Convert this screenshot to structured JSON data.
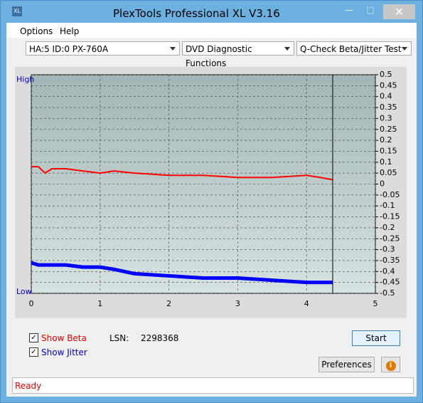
{
  "window": {
    "title": "PlexTools Professional XL V3.16"
  },
  "menu": [
    "Options",
    "Help"
  ],
  "toolbar": {
    "drive": "HA:5 ID:0  PX-760A",
    "function": "DVD Diagnostic Functions",
    "test": "Q-Check Beta/Jitter Test"
  },
  "chart_data": {
    "type": "line",
    "high_label": "High",
    "low_label": "Low",
    "x": [
      0,
      0.1,
      0.2,
      0.3,
      0.5,
      0.75,
      1.0,
      1.2,
      1.5,
      2,
      2.5,
      3,
      3.5,
      4,
      4.2,
      4.38
    ],
    "series": [
      {
        "name": "Beta",
        "color": "#ff0000",
        "values": [
          0.08,
          0.08,
          0.05,
          0.07,
          0.07,
          0.06,
          0.05,
          0.06,
          0.05,
          0.04,
          0.04,
          0.03,
          0.03,
          0.04,
          0.03,
          0.02
        ]
      },
      {
        "name": "Jitter",
        "color": "#0000ff",
        "values": [
          -0.36,
          -0.37,
          -0.37,
          -0.37,
          -0.37,
          -0.38,
          -0.38,
          -0.39,
          -0.41,
          -0.42,
          -0.43,
          -0.43,
          -0.44,
          -0.45,
          -0.45,
          -0.45
        ]
      }
    ],
    "xlim": [
      0,
      5
    ],
    "xticks": [
      0,
      1,
      2,
      3,
      4,
      5
    ],
    "ylim": [
      -0.5,
      0.5
    ],
    "yticks": [
      0.5,
      0.45,
      0.4,
      0.35,
      0.3,
      0.25,
      0.2,
      0.15,
      0.1,
      0.05,
      0,
      -0.05,
      -0.1,
      -0.15,
      -0.2,
      -0.25,
      -0.3,
      -0.35,
      -0.4,
      -0.45,
      -0.5
    ],
    "grid": true
  },
  "controls": {
    "show_beta": "Show Beta",
    "show_jitter": "Show Jitter",
    "lsn_label": "LSN:",
    "lsn_value": "2298368",
    "start": "Start",
    "preferences": "Preferences"
  },
  "status": "Ready"
}
